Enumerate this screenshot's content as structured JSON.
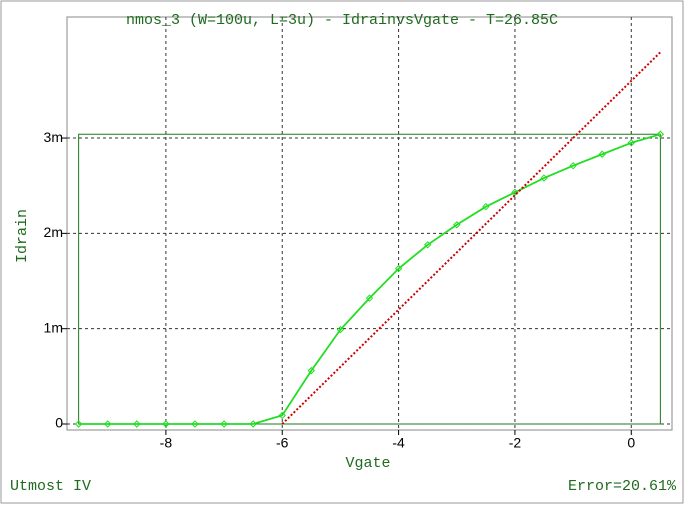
{
  "chart_data": {
    "type": "line",
    "title": "nmos_3 (W=100u, L=3u) - IdrainvsVgate - T=26.85C",
    "x_label": "Vgate",
    "y_label": "Idrain",
    "footer_left": "Utmost IV",
    "footer_right": "Error=20.61%",
    "xlim": [
      -9.7,
      0.7
    ],
    "ylim": [
      -6.3e-05,
      0.00427
    ],
    "xticks": [
      -8,
      -6,
      -4,
      -2,
      0
    ],
    "yticks": [
      0,
      {
        "value": 0.001,
        "label": "1m"
      },
      {
        "value": 0.002,
        "label": "2m"
      },
      {
        "value": 0.003,
        "label": "3m"
      }
    ],
    "grid": true,
    "series": [
      {
        "color": "#22dd22",
        "markers": true,
        "x": [
          -9.5,
          -9,
          -8.5,
          -8,
          -7.5,
          -7,
          -6.5,
          -6,
          -5.5,
          -5,
          -4.5,
          -4,
          -3.5,
          -3,
          -2.5,
          -2,
          -1.5,
          -1,
          -0.5,
          0,
          0.5
        ],
        "values": [
          0,
          0,
          0,
          0,
          0,
          0,
          0,
          9e-05,
          0.00056,
          0.00099,
          0.00132,
          0.00163,
          0.00188,
          0.00209,
          0.00228,
          0.00243,
          0.00258,
          0.00271,
          0.00283,
          0.00295,
          0.00304
        ]
      },
      {
        "color": "#cc0000",
        "markers": false,
        "dotted": true,
        "x": [
          -6,
          0.5
        ],
        "values": [
          0,
          0.0039
        ]
      }
    ]
  }
}
